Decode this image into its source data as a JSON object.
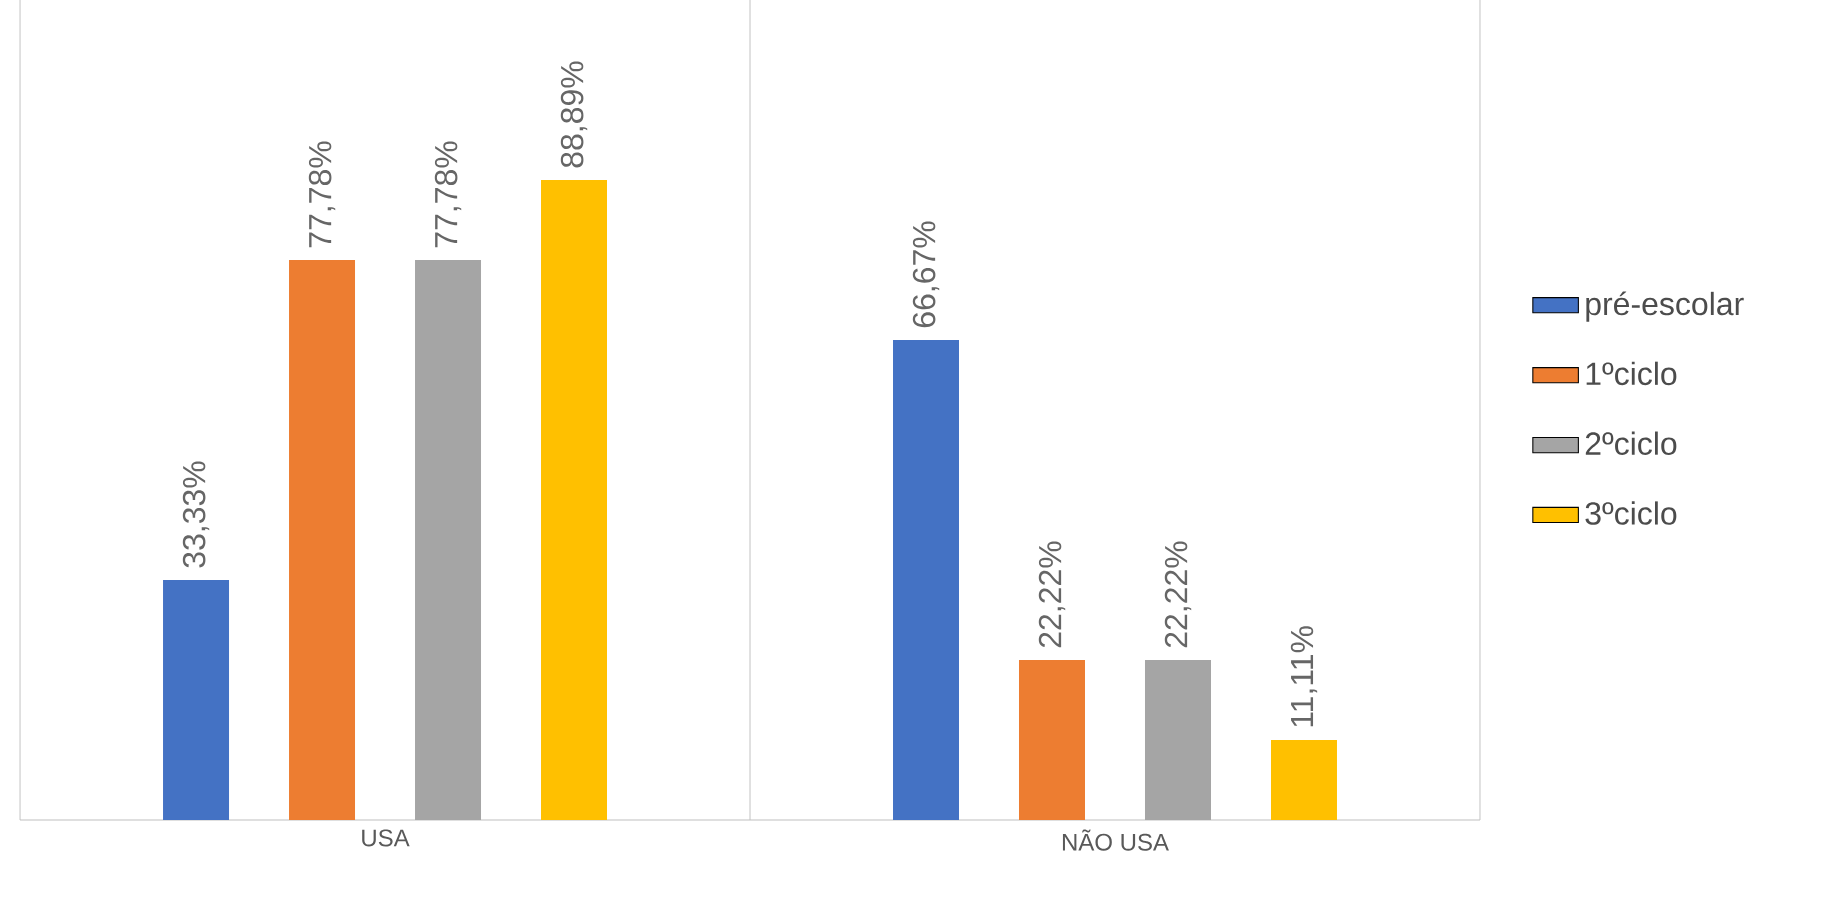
{
  "chart_data": {
    "type": "bar",
    "categories": [
      "USA",
      "NÃO USA"
    ],
    "grid": "x",
    "legend": "right",
    "series": [
      {
        "name": "pré-escolar",
        "color": "#4472c4",
        "values": [
          33.33,
          66.67
        ],
        "value_labels": [
          "33,33%",
          "66,67%"
        ]
      },
      {
        "name": "1ºciclo",
        "color": "#ed7d31",
        "values": [
          77.78,
          22.22
        ],
        "value_labels": [
          "77,78%",
          "22,22%"
        ]
      },
      {
        "name": "2ºciclo",
        "color": "#a5a5a5",
        "values": [
          77.78,
          22.22
        ],
        "value_labels": [
          "77,78%",
          "22,22%"
        ]
      },
      {
        "name": "3ºciclo",
        "color": "#ffc000",
        "values": [
          88.89,
          11.11
        ],
        "value_labels": [
          "88,89%",
          "11,11%"
        ]
      }
    ]
  }
}
